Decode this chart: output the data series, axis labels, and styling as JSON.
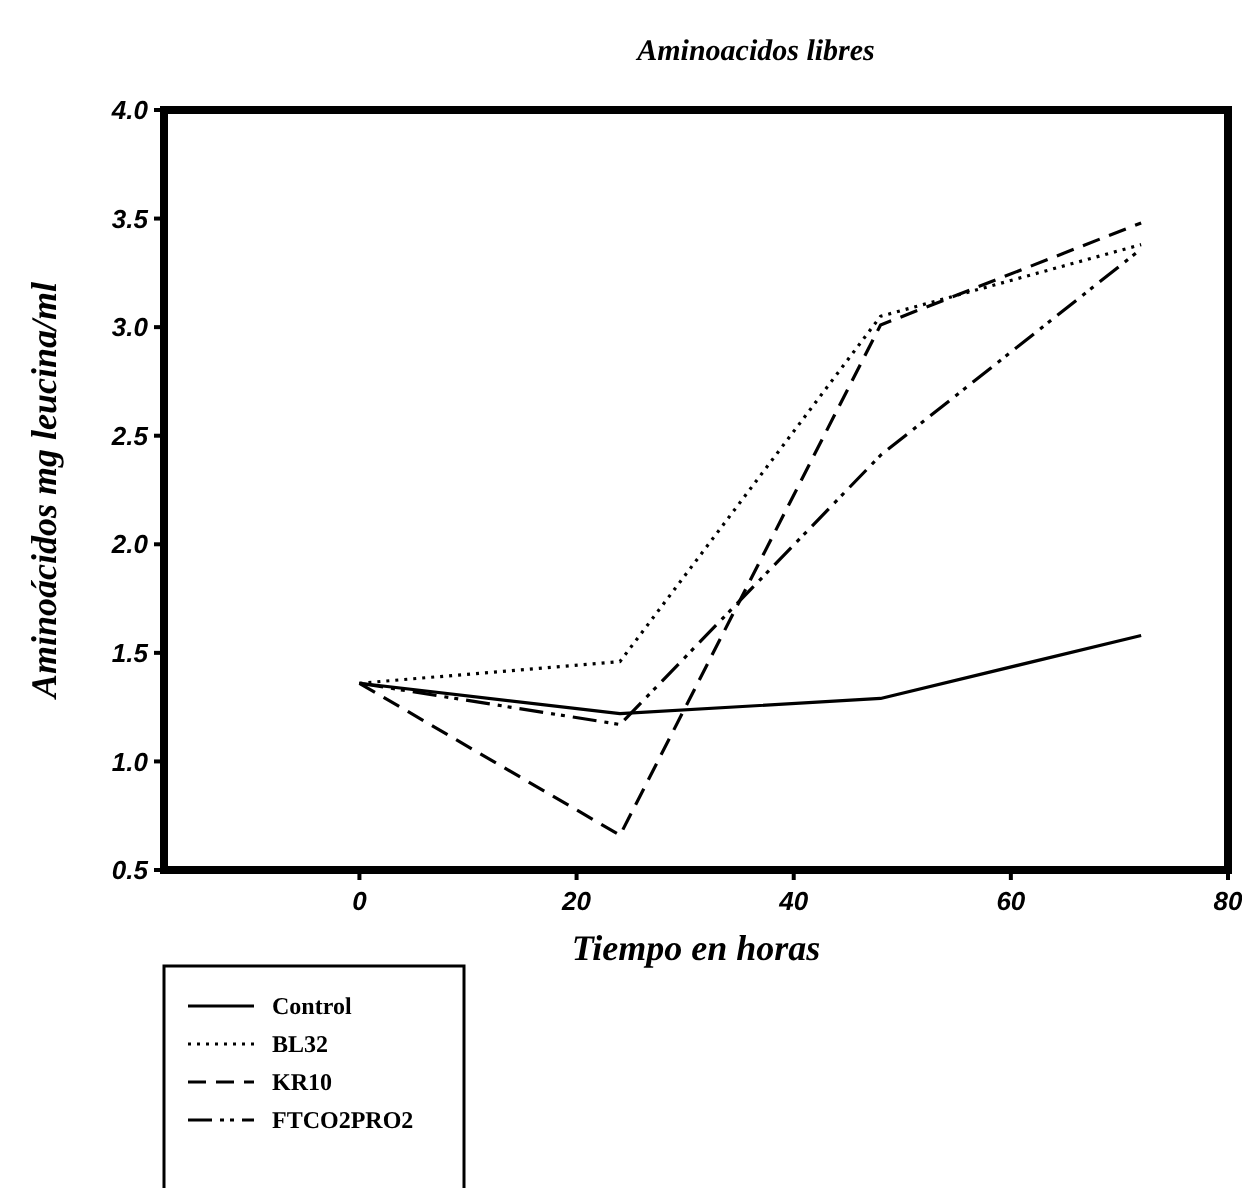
{
  "chart_data": {
    "type": "line",
    "title": "Aminoacidos libres",
    "xlabel": "Tiempo en horas",
    "ylabel": "Aminoácidos mg leucina/ml",
    "x": [
      0,
      24,
      48,
      72
    ],
    "xlim": [
      -18,
      80
    ],
    "xticks": [
      0,
      20,
      40,
      60,
      80
    ],
    "ylim": [
      0.5,
      4.0
    ],
    "yticks": [
      {
        "value": 0.5,
        "label": "0.5"
      },
      {
        "value": 1,
        "label": "1.0"
      },
      {
        "value": 1.5,
        "label": "1.5"
      },
      {
        "value": 2,
        "label": "2.0"
      },
      {
        "value": 2.5,
        "label": "2.5"
      },
      {
        "value": 3,
        "label": "3.0"
      },
      {
        "value": 3.5,
        "label": "3.5"
      },
      {
        "value": 4,
        "label": "4.0"
      }
    ],
    "grid": false,
    "legend": "bottom left",
    "series": [
      {
        "name": "Control",
        "color": "#000000",
        "line_style": "solid",
        "values": [
          1.36,
          1.22,
          1.29,
          1.58
        ]
      },
      {
        "name": "BL32",
        "color": "#000000",
        "line_style": "dotted",
        "values": [
          1.36,
          1.46,
          3.05,
          3.38
        ]
      },
      {
        "name": "KR10",
        "color": "#000000",
        "line_style": "dashed",
        "values": [
          1.36,
          0.66,
          3.01,
          3.48
        ]
      },
      {
        "name": "FTCO2PRO2",
        "color": "#000000",
        "line_style": "dashdot",
        "values": [
          1.36,
          1.17,
          2.41,
          3.36
        ]
      }
    ]
  }
}
